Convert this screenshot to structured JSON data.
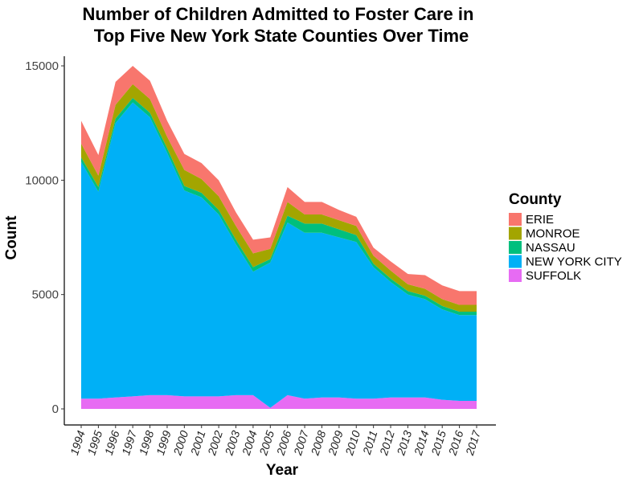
{
  "chart_data": {
    "type": "area",
    "stacked": true,
    "title_lines": [
      "Number of Children Admitted to Foster Care in",
      "Top Five New York State Counties Over Time"
    ],
    "xlabel": "Year",
    "ylabel": "Count",
    "ylim": [
      0,
      15500
    ],
    "yticks": [
      0,
      5000,
      10000,
      15000
    ],
    "ytick_labels": [
      "0",
      "5000",
      "10000",
      "15000"
    ],
    "x": [
      1994,
      1995,
      1996,
      1997,
      1998,
      1999,
      2000,
      2001,
      2002,
      2003,
      2004,
      2005,
      2006,
      2007,
      2008,
      2009,
      2010,
      2011,
      2012,
      2013,
      2014,
      2015,
      2016,
      2017
    ],
    "x_labels": [
      "1994",
      "1995",
      "1996",
      "1997",
      "1998",
      "1999",
      "2000",
      "2001",
      "2002",
      "2003",
      "2004",
      "2005",
      "2006",
      "2007",
      "2008",
      "2009",
      "2010",
      "2011",
      "2012",
      "2013",
      "2014",
      "2015",
      "2016",
      "2017"
    ],
    "grid": false,
    "legend_title": "County",
    "legend_position": "right",
    "stack_order_bottom_to_top": [
      "SUFFOLK",
      "NEW YORK CITY",
      "NASSAU",
      "MONROE",
      "ERIE"
    ],
    "series": [
      {
        "name": "ERIE",
        "color": "#F8766D",
        "values": [
          1000,
          900,
          1000,
          800,
          800,
          700,
          700,
          700,
          700,
          600,
          600,
          500,
          650,
          550,
          550,
          450,
          400,
          350,
          400,
          450,
          600,
          600,
          600,
          600
        ]
      },
      {
        "name": "MONROE",
        "color": "#A3A500",
        "values": [
          600,
          500,
          600,
          600,
          600,
          500,
          700,
          600,
          600,
          600,
          600,
          450,
          600,
          400,
          400,
          400,
          400,
          350,
          350,
          300,
          300,
          300,
          300,
          300
        ]
      },
      {
        "name": "NASSAU",
        "color": "#00BF7D",
        "values": [
          200,
          200,
          200,
          200,
          200,
          200,
          200,
          200,
          200,
          200,
          200,
          150,
          300,
          400,
          400,
          350,
          300,
          150,
          150,
          150,
          150,
          150,
          150,
          150
        ]
      },
      {
        "name": "NEW YORK CITY",
        "color": "#00B0F6",
        "values": [
          10350,
          9050,
          12000,
          12850,
          12150,
          10600,
          9000,
          8700,
          7950,
          6600,
          5400,
          6350,
          7550,
          7250,
          7200,
          7000,
          6850,
          5750,
          5050,
          4500,
          4300,
          3950,
          3750,
          3750
        ]
      },
      {
        "name": "SUFFOLK",
        "color": "#E76BF3",
        "values": [
          450,
          450,
          500,
          550,
          600,
          600,
          550,
          550,
          550,
          600,
          600,
          50,
          600,
          450,
          500,
          500,
          450,
          450,
          500,
          500,
          500,
          400,
          350,
          350
        ]
      }
    ]
  }
}
